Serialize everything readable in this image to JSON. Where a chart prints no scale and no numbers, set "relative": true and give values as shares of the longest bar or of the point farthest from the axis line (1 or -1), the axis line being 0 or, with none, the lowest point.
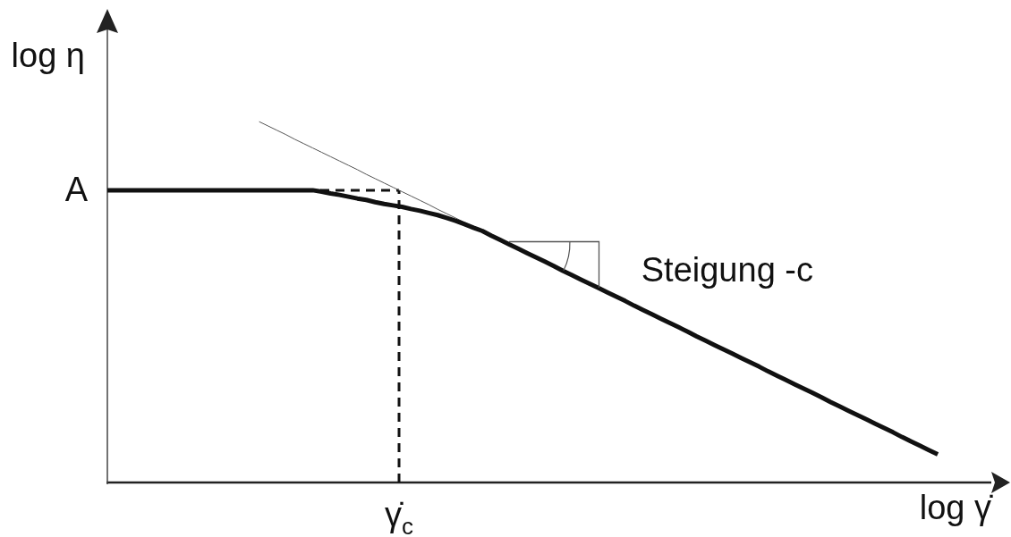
{
  "chart_data": {
    "type": "line",
    "relative": true,
    "xlabel": "log γ̇",
    "ylabel": "log η",
    "categories": [
      null,
      null,
      null,
      null,
      null,
      null,
      null,
      null,
      null,
      null,
      null,
      null,
      null,
      null,
      null,
      null,
      null,
      null,
      null,
      null,
      null,
      null,
      null,
      null,
      null,
      null,
      null,
      null,
      null,
      null,
      null,
      null,
      null,
      null,
      null,
      null,
      null,
      null,
      null,
      null,
      null,
      null,
      null,
      null,
      null,
      null,
      null,
      null,
      null,
      null,
      null,
      null,
      null,
      null,
      null,
      null,
      null,
      null,
      null,
      null,
      null,
      null,
      null,
      null,
      null,
      null,
      null,
      null,
      null,
      null,
      null,
      null,
      null,
      null,
      null,
      null,
      null,
      null,
      null,
      null,
      null,
      null,
      null,
      null,
      null,
      null,
      null,
      null,
      null,
      null,
      null,
      null,
      null,
      null,
      null,
      null,
      null,
      null,
      null,
      null
    ],
    "series": [
      {
        "color": "#111111",
        "values": [
          0.81,
          0.81,
          0.81,
          0.81,
          0.81,
          0.81,
          0.81,
          0.81,
          0.81,
          0.81,
          0.81,
          0.81,
          0.81,
          0.81,
          0.81,
          0.81,
          0.81,
          0.81,
          0.81,
          0.81,
          0.81,
          0.81,
          0.81,
          0.81,
          0.806,
          0.801,
          0.797,
          0.792,
          0.787,
          0.783,
          0.777,
          0.772,
          0.768,
          0.764,
          0.758,
          0.753,
          0.747,
          0.741,
          0.733,
          0.725,
          0.716,
          0.706,
          0.697,
          0.684,
          0.672,
          0.66,
          0.648,
          0.636,
          0.624,
          0.612,
          0.6,
          0.587,
          0.575,
          0.563,
          0.551,
          0.539,
          0.527,
          0.515,
          0.503,
          0.49,
          0.478,
          0.466,
          0.454,
          0.442,
          0.43,
          0.418,
          0.405,
          0.393,
          0.381,
          0.369,
          0.357,
          0.345,
          0.333,
          0.321,
          0.308,
          0.296,
          0.284,
          0.272,
          0.26,
          0.248,
          0.236,
          0.223,
          0.211,
          0.199,
          0.187,
          0.175,
          0.163,
          0.151,
          0.139,
          0.126,
          0.114,
          0.102,
          0.09,
          0.078,
          null,
          null,
          null,
          null,
          null,
          null
        ]
      },
      {
        "color": "#555555",
        "values": [
          null,
          null,
          null,
          null,
          null,
          null,
          null,
          null,
          null,
          null,
          null,
          null,
          null,
          null,
          null,
          null,
          null,
          1,
          0.988,
          0.976,
          0.964,
          0.951,
          0.939,
          0.927,
          0.915,
          0.903,
          0.891,
          0.879,
          0.867,
          0.854,
          0.842,
          0.83,
          0.818,
          0.806,
          0.794,
          0.782,
          0.77,
          0.757,
          0.745,
          0.733,
          0.721,
          0.709,
          0.697,
          null,
          null,
          null,
          null,
          null,
          null,
          null,
          null,
          null,
          null,
          null,
          null,
          null,
          null,
          null,
          null,
          null,
          null,
          null,
          null,
          null,
          null,
          null,
          null,
          null,
          null,
          null,
          null,
          null,
          null,
          null,
          null,
          null,
          null,
          null,
          null,
          null,
          null,
          null,
          null,
          null,
          null,
          null,
          null,
          null,
          null,
          null,
          null,
          null,
          null,
          null,
          null,
          null,
          null,
          null,
          null,
          null
        ]
      }
    ],
    "ref_lines": [
      {
        "axis": "x",
        "value": "γ̇$_{c}$",
        "line_style": "dashed",
        "color": "#111111"
      },
      {
        "axis": "y",
        "value": 0.81,
        "label": "A",
        "line_style": "dashed",
        "color": "#111111"
      }
    ],
    "annotations": [
      "Steigung -c"
    ]
  }
}
